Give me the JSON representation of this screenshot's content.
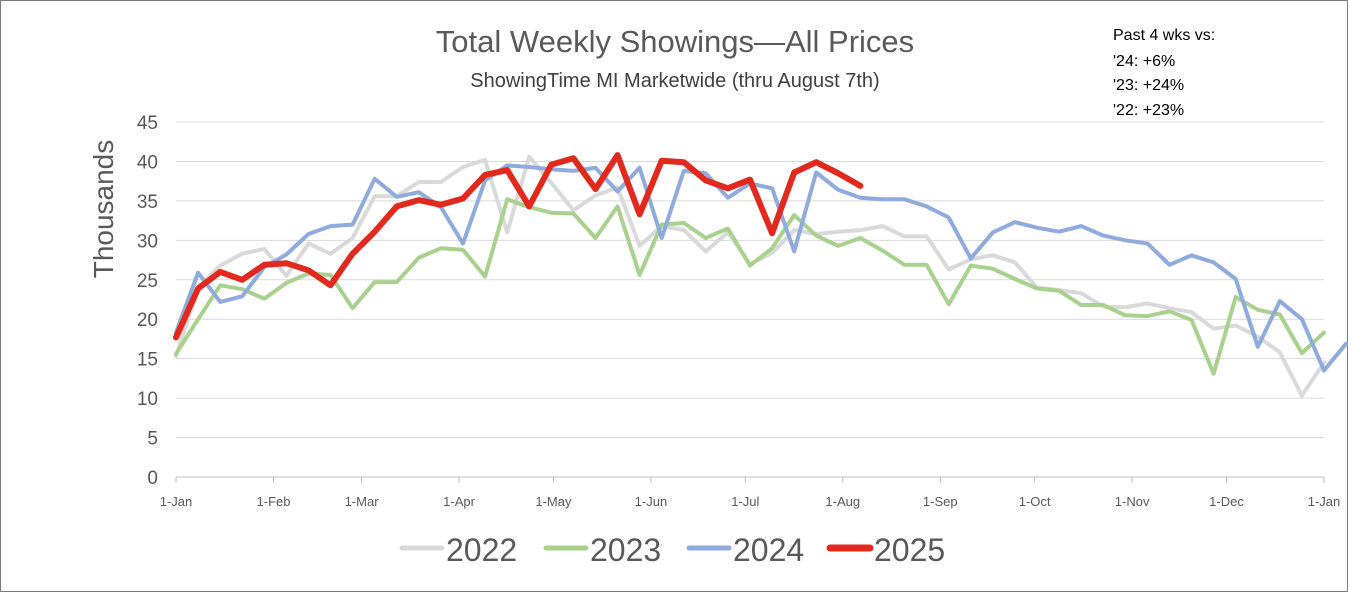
{
  "chart_data": {
    "type": "line",
    "title": "Total Weekly Showings—All Prices",
    "subtitle": "ShowingTime  MI Marketwide (thru August 7th)",
    "ylabel": "Thousands",
    "xlabel": "",
    "ylim": [
      0,
      45
    ],
    "yticks": [
      "0",
      "5",
      "10",
      "15",
      "20",
      "25",
      "30",
      "35",
      "40",
      "45"
    ],
    "xticks": [
      "1-Jan",
      "1-Feb",
      "1-Mar",
      "1-Apr",
      "1-May",
      "1-Jun",
      "1-Jul",
      "1-Aug",
      "1-Sep",
      "1-Oct",
      "1-Nov",
      "1-Dec",
      "1-Jan"
    ],
    "x_unit": "week of year (0 = 1-Jan, 52 = next 1-Jan)",
    "grid": "horizontal",
    "legend": "bottom",
    "annotation": [
      "Past 4 wks vs:",
      "'24: +6%",
      "'23: +24%",
      "'22: +23%"
    ],
    "series": [
      {
        "name": "2022",
        "color": "#d9d9d9",
        "values": [
          15.3,
          24.0,
          26.8,
          28.3,
          28.9,
          25.5,
          29.6,
          28.3,
          30.3,
          35.6,
          35.6,
          37.4,
          37.4,
          39.3,
          40.2,
          31.0,
          40.6,
          37.3,
          33.8,
          35.7,
          36.7,
          29.3,
          31.8,
          31.3,
          28.6,
          31.0,
          27.0,
          28.4,
          31.3,
          30.8,
          31.1,
          31.3,
          31.8,
          30.5,
          30.5,
          26.3,
          27.6,
          28.1,
          27.2,
          24.0,
          23.7,
          23.3,
          21.6,
          21.5,
          22.0,
          21.4,
          20.9,
          18.8,
          19.2,
          17.8,
          15.8,
          10.3,
          14.5
        ]
      },
      {
        "name": "2023",
        "color": "#a9d18e",
        "values": [
          15.6,
          20.0,
          24.3,
          23.8,
          22.6,
          24.6,
          25.8,
          25.6,
          21.4,
          24.7,
          24.7,
          27.8,
          29.0,
          28.8,
          25.4,
          35.2,
          34.2,
          33.5,
          33.4,
          30.3,
          34.3,
          25.6,
          32.0,
          32.2,
          30.3,
          31.5,
          26.8,
          29.0,
          33.2,
          30.6,
          29.3,
          30.3,
          28.7,
          26.9,
          26.9,
          21.9,
          26.8,
          26.4,
          25.1,
          23.9,
          23.6,
          21.8,
          21.8,
          20.5,
          20.4,
          21.0,
          19.9,
          13.1,
          22.8,
          21.2,
          20.6,
          15.7,
          18.3
        ]
      },
      {
        "name": "2024",
        "color": "#8faadc",
        "values": [
          18.3,
          25.9,
          22.2,
          22.9,
          26.6,
          28.2,
          30.8,
          31.8,
          32.0,
          37.8,
          35.5,
          36.1,
          34.2,
          29.6,
          37.6,
          39.5,
          39.3,
          39.0,
          38.8,
          39.2,
          36.2,
          39.2,
          30.3,
          38.8,
          38.5,
          35.4,
          37.2,
          36.6,
          28.6,
          38.6,
          36.4,
          35.4,
          35.2,
          35.2,
          34.3,
          32.9,
          27.7,
          31.0,
          32.3,
          31.6,
          31.1,
          31.8,
          30.6,
          30.0,
          29.6,
          26.9,
          28.1,
          27.2,
          25.1,
          16.5,
          22.3,
          20.0,
          13.5,
          16.9
        ]
      },
      {
        "name": "2025",
        "color": "#e1291d",
        "values": [
          17.7,
          23.9,
          26.0,
          25.0,
          26.9,
          27.1,
          26.2,
          24.3,
          28.3,
          31.1,
          34.3,
          35.1,
          34.5,
          35.3,
          38.3,
          38.9,
          34.3,
          39.6,
          40.4,
          36.5,
          40.8,
          33.3,
          40.1,
          39.9,
          37.6,
          36.6,
          37.7,
          30.9,
          38.6,
          39.9,
          38.5,
          36.9
        ]
      }
    ]
  }
}
